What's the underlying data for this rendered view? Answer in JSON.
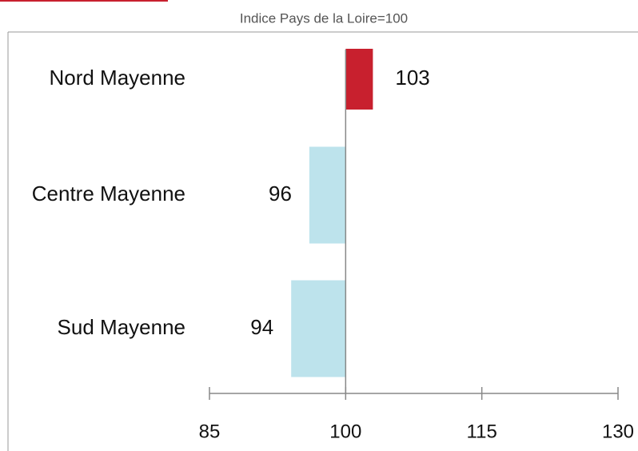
{
  "chart_data": {
    "type": "bar",
    "orientation": "horizontal",
    "subtitle": "Indice Pays de la Loire=100",
    "categories": [
      "Nord Mayenne",
      "Centre Mayenne",
      "Sud Mayenne"
    ],
    "values": [
      103,
      96,
      94
    ],
    "colors": [
      "#c8202e",
      "#bde3ec",
      "#bde3ec"
    ],
    "xlim": [
      85,
      130
    ],
    "xticks": [
      85,
      100,
      115,
      130
    ]
  }
}
